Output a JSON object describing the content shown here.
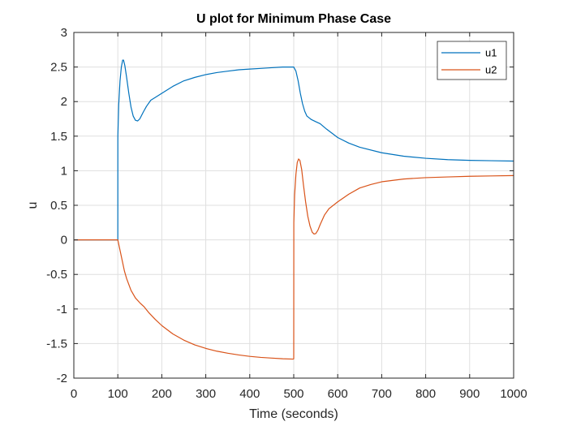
{
  "colors": {
    "u1": "#0072BD",
    "u2": "#D95319",
    "axis": "#262626",
    "grid": "#DFDFDF"
  },
  "chart_data": {
    "type": "line",
    "title": "U plot for Minimum Phase Case",
    "xlabel": "Time (seconds)",
    "ylabel": "u",
    "xlim": [
      0,
      1000
    ],
    "ylim": [
      -2,
      3
    ],
    "xticks": [
      0,
      100,
      200,
      300,
      400,
      500,
      600,
      700,
      800,
      900,
      1000
    ],
    "yticks": [
      -2,
      -1.5,
      -1,
      -0.5,
      0,
      0.5,
      1,
      1.5,
      2,
      2.5,
      3
    ],
    "xtick_labels": [
      "0",
      "100",
      "200",
      "300",
      "400",
      "500",
      "600",
      "700",
      "800",
      "900",
      "1000"
    ],
    "ytick_labels": [
      "-2",
      "-1.5",
      "-1",
      "-0.5",
      "0",
      "0.5",
      "1",
      "1.5",
      "2",
      "2.5",
      "3"
    ],
    "grid": true,
    "legend_position": "top-right",
    "series": [
      {
        "name": "u1",
        "x": [
          0,
          100,
          100.1,
          102,
          105,
          108,
          111,
          113,
          116,
          120,
          125,
          130,
          135,
          140,
          145,
          150,
          158,
          165,
          175,
          185,
          200,
          225,
          250,
          275,
          300,
          325,
          350,
          375,
          400,
          425,
          450,
          475,
          500,
          505,
          510,
          515,
          520,
          525,
          530,
          540,
          550,
          560,
          575,
          600,
          625,
          650,
          700,
          750,
          800,
          850,
          900,
          950,
          1000
        ],
        "y": [
          0,
          0,
          1.5,
          1.95,
          2.3,
          2.5,
          2.6,
          2.6,
          2.52,
          2.35,
          2.12,
          1.92,
          1.79,
          1.73,
          1.72,
          1.75,
          1.85,
          1.93,
          2.02,
          2.06,
          2.12,
          2.22,
          2.3,
          2.35,
          2.39,
          2.42,
          2.44,
          2.46,
          2.47,
          2.48,
          2.49,
          2.5,
          2.5,
          2.44,
          2.3,
          2.12,
          1.97,
          1.86,
          1.79,
          1.74,
          1.71,
          1.68,
          1.6,
          1.48,
          1.4,
          1.34,
          1.26,
          1.21,
          1.18,
          1.16,
          1.15,
          1.145,
          1.14
        ]
      },
      {
        "name": "u2",
        "x": [
          0,
          100,
          102,
          105,
          110,
          115,
          120,
          130,
          140,
          150,
          160,
          170,
          185,
          200,
          225,
          250,
          275,
          300,
          325,
          350,
          375,
          400,
          425,
          450,
          475,
          499,
          500,
          500.2,
          502,
          505,
          508,
          511,
          514,
          518,
          522,
          527,
          532,
          537,
          542,
          546,
          550,
          555,
          560,
          570,
          580,
          600,
          625,
          650,
          675,
          700,
          750,
          800,
          850,
          900,
          950,
          1000
        ],
        "y": [
          0,
          0,
          -0.06,
          -0.15,
          -0.3,
          -0.45,
          -0.56,
          -0.73,
          -0.84,
          -0.91,
          -0.97,
          -1.05,
          -1.15,
          -1.24,
          -1.36,
          -1.45,
          -1.52,
          -1.57,
          -1.61,
          -1.64,
          -1.665,
          -1.685,
          -1.7,
          -1.71,
          -1.72,
          -1.725,
          -1.72,
          0.25,
          0.65,
          0.95,
          1.12,
          1.17,
          1.15,
          1.02,
          0.8,
          0.55,
          0.34,
          0.2,
          0.11,
          0.085,
          0.09,
          0.14,
          0.22,
          0.36,
          0.45,
          0.55,
          0.66,
          0.75,
          0.8,
          0.84,
          0.88,
          0.9,
          0.91,
          0.92,
          0.925,
          0.93
        ]
      }
    ]
  }
}
